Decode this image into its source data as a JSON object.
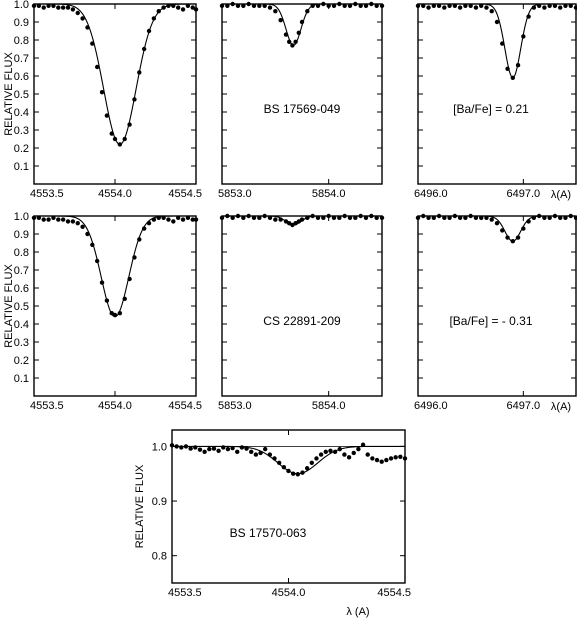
{
  "chart_data": [
    {
      "type": "scatter",
      "ylabel": "RELATIVE FLUX",
      "annotation": "BS 17569-049",
      "abundance": "[Ba/Fe] = 0.21",
      "xlabel": "λ(A)",
      "ylim": [
        0,
        1
      ],
      "yticks": [
        "0.1",
        "0.2",
        "0.3",
        "0.4",
        "0.5",
        "0.6",
        "0.7",
        "0.8",
        "0.9",
        "1.0"
      ],
      "panels": [
        {
          "xlim": [
            4553.5,
            4554.5
          ],
          "xticks": [
            "4553.5",
            "4554.0",
            "4554.5"
          ],
          "line_center": 4554.03,
          "line_depth": 0.78,
          "line_width": 0.1,
          "series": [
            {
              "x": [
                4553.5,
                4553.53,
                4553.56,
                4553.59,
                4553.62,
                4553.65,
                4553.68,
                4553.71,
                4553.74,
                4553.77,
                4553.8,
                4553.83,
                4553.86,
                4553.89,
                4553.92,
                4553.95,
                4553.98,
                4554.0,
                4554.03,
                4554.06,
                4554.09,
                4554.12,
                4554.15,
                4554.18,
                4554.21,
                4554.24,
                4554.27,
                4554.3,
                4554.33,
                4554.36,
                4554.39,
                4554.42,
                4554.45,
                4554.48,
                4554.5
              ],
              "y": [
                0.99,
                0.99,
                0.98,
                0.99,
                0.99,
                0.98,
                0.98,
                0.98,
                0.97,
                0.95,
                0.92,
                0.87,
                0.78,
                0.65,
                0.51,
                0.38,
                0.28,
                0.25,
                0.22,
                0.25,
                0.33,
                0.47,
                0.62,
                0.75,
                0.85,
                0.92,
                0.96,
                0.98,
                0.99,
                0.99,
                0.98,
                0.97,
                0.99,
                0.98,
                0.97
              ]
            }
          ]
        },
        {
          "xlim": [
            5853.0,
            5854.5
          ],
          "xticks": [
            "5853.0",
            "5854.0"
          ],
          "line_center": 5853.67,
          "line_depth": 0.23,
          "line_width": 0.07,
          "series": [
            {
              "x": [
                5853.0,
                5853.05,
                5853.1,
                5853.15,
                5853.2,
                5853.25,
                5853.3,
                5853.35,
                5853.4,
                5853.45,
                5853.5,
                5853.55,
                5853.6,
                5853.63,
                5853.66,
                5853.69,
                5853.72,
                5853.75,
                5853.8,
                5853.85,
                5853.9,
                5853.95,
                5854.0,
                5854.05,
                5854.1,
                5854.15,
                5854.2,
                5854.25,
                5854.3,
                5854.35,
                5854.4,
                5854.45,
                5854.5
              ],
              "y": [
                0.99,
                0.99,
                1.0,
                0.99,
                0.99,
                1.0,
                0.99,
                0.99,
                0.99,
                0.98,
                0.96,
                0.91,
                0.83,
                0.79,
                0.77,
                0.79,
                0.84,
                0.9,
                0.96,
                0.99,
                0.99,
                1.0,
                0.99,
                0.99,
                1.0,
                0.99,
                0.99,
                1.0,
                0.99,
                0.99,
                1.0,
                0.99,
                0.99
              ]
            }
          ]
        },
        {
          "xlim": [
            6496.0,
            6497.5
          ],
          "xticks": [
            "6496.0",
            "6497.0"
          ],
          "line_center": 6496.9,
          "line_depth": 0.41,
          "line_width": 0.075,
          "series": [
            {
              "x": [
                6496.0,
                6496.05,
                6496.1,
                6496.15,
                6496.2,
                6496.25,
                6496.3,
                6496.35,
                6496.4,
                6496.45,
                6496.5,
                6496.55,
                6496.6,
                6496.65,
                6496.7,
                6496.75,
                6496.8,
                6496.85,
                6496.9,
                6496.95,
                6497.0,
                6497.05,
                6497.1,
                6497.15,
                6497.2,
                6497.25,
                6497.3,
                6497.35,
                6497.4,
                6497.45,
                6497.5
              ],
              "y": [
                0.99,
                0.99,
                0.98,
                0.99,
                0.99,
                0.98,
                0.99,
                0.99,
                0.98,
                0.99,
                0.99,
                0.98,
                0.99,
                0.98,
                0.96,
                0.9,
                0.78,
                0.64,
                0.59,
                0.66,
                0.82,
                0.93,
                0.98,
                0.99,
                0.98,
                0.99,
                0.99,
                0.98,
                0.99,
                0.99,
                0.98
              ]
            }
          ]
        }
      ]
    },
    {
      "type": "scatter",
      "ylabel": "RELATIVE FLUX",
      "annotation": "CS 22891-209",
      "abundance": "[Ba/Fe] = - 0.31",
      "xlabel": "λ(A)",
      "ylim": [
        0,
        1
      ],
      "yticks": [
        "0.1",
        "0.2",
        "0.3",
        "0.4",
        "0.5",
        "0.6",
        "0.7",
        "0.8",
        "0.9",
        "1.0"
      ],
      "panels": [
        {
          "xlim": [
            4553.5,
            4554.5
          ],
          "xticks": [
            "4553.5",
            "4554.0",
            "4554.5"
          ],
          "line_center": 4554.0,
          "line_depth": 0.56,
          "line_width": 0.085,
          "series": [
            {
              "x": [
                4553.5,
                4553.53,
                4553.56,
                4553.59,
                4553.62,
                4553.65,
                4553.68,
                4553.71,
                4553.74,
                4553.77,
                4553.8,
                4553.83,
                4553.86,
                4553.89,
                4553.92,
                4553.95,
                4553.98,
                4554.0,
                4554.03,
                4554.06,
                4554.09,
                4554.12,
                4554.15,
                4554.18,
                4554.21,
                4554.24,
                4554.27,
                4554.3,
                4554.33,
                4554.36,
                4554.39,
                4554.42,
                4554.45,
                4554.48,
                4554.5
              ],
              "y": [
                0.99,
                0.99,
                0.98,
                0.98,
                0.99,
                0.98,
                0.98,
                0.97,
                0.97,
                0.96,
                0.94,
                0.9,
                0.84,
                0.75,
                0.63,
                0.53,
                0.46,
                0.45,
                0.46,
                0.54,
                0.65,
                0.77,
                0.87,
                0.93,
                0.96,
                0.98,
                0.99,
                0.99,
                0.98,
                0.97,
                0.99,
                0.98,
                0.99,
                0.98,
                0.98
              ]
            }
          ]
        },
        {
          "xlim": [
            5853.0,
            5854.5
          ],
          "xticks": [
            "5853.0",
            "5854.0"
          ],
          "line_center": 5853.67,
          "line_depth": 0.05,
          "line_width": 0.07,
          "series": [
            {
              "x": [
                5853.0,
                5853.05,
                5853.1,
                5853.15,
                5853.2,
                5853.25,
                5853.3,
                5853.35,
                5853.4,
                5853.45,
                5853.5,
                5853.55,
                5853.6,
                5853.63,
                5853.66,
                5853.69,
                5853.72,
                5853.75,
                5853.8,
                5853.85,
                5853.9,
                5853.95,
                5854.0,
                5854.05,
                5854.1,
                5854.15,
                5854.2,
                5854.25,
                5854.3,
                5854.35,
                5854.4,
                5854.45,
                5854.5
              ],
              "y": [
                0.99,
                1.0,
                0.99,
                1.0,
                0.99,
                1.0,
                0.99,
                0.99,
                1.0,
                0.99,
                0.98,
                0.98,
                0.97,
                0.96,
                0.95,
                0.96,
                0.97,
                0.98,
                0.99,
                1.0,
                0.99,
                0.99,
                1.0,
                0.99,
                0.99,
                1.0,
                0.99,
                0.99,
                1.0,
                0.99,
                1.0,
                0.99,
                0.99
              ]
            }
          ]
        },
        {
          "xlim": [
            6496.0,
            6497.5
          ],
          "xticks": [
            "6496.0",
            "6497.0"
          ],
          "line_center": 6496.9,
          "line_depth": 0.14,
          "line_width": 0.075,
          "series": [
            {
              "x": [
                6496.0,
                6496.05,
                6496.1,
                6496.15,
                6496.2,
                6496.25,
                6496.3,
                6496.35,
                6496.4,
                6496.45,
                6496.5,
                6496.55,
                6496.6,
                6496.65,
                6496.7,
                6496.75,
                6496.8,
                6496.85,
                6496.9,
                6496.95,
                6497.0,
                6497.05,
                6497.1,
                6497.15,
                6497.2,
                6497.25,
                6497.3,
                6497.35,
                6497.4,
                6497.45,
                6497.5
              ],
              "y": [
                0.99,
                1.0,
                0.99,
                0.99,
                1.0,
                0.99,
                0.99,
                1.0,
                0.99,
                0.99,
                1.0,
                0.99,
                0.99,
                0.99,
                0.98,
                0.96,
                0.92,
                0.88,
                0.86,
                0.88,
                0.93,
                0.97,
                0.99,
                1.0,
                0.99,
                0.99,
                1.0,
                0.99,
                0.99,
                1.0,
                0.99
              ]
            }
          ]
        }
      ]
    },
    {
      "type": "scatter",
      "ylabel": "RELATIVE FLUX",
      "annotation": "BS 17570-063",
      "xlabel": "λ (A)",
      "xlim": [
        4553.5,
        4554.5
      ],
      "xticks": [
        "4553.5",
        "4554.0",
        "4554.5"
      ],
      "ylim": [
        0.75,
        1.03
      ],
      "yticks": [
        "0.8",
        "0.9",
        "1.0"
      ],
      "line_center": 4554.04,
      "line_depth": 0.05,
      "line_width": 0.085,
      "series": [
        {
          "x": [
            4553.5,
            4553.52,
            4553.54,
            4553.56,
            4553.58,
            4553.6,
            4553.62,
            4553.64,
            4553.66,
            4553.68,
            4553.7,
            4553.72,
            4553.74,
            4553.76,
            4553.78,
            4553.8,
            4553.82,
            4553.84,
            4553.86,
            4553.88,
            4553.9,
            4553.92,
            4553.94,
            4553.96,
            4553.98,
            4554.0,
            4554.02,
            4554.04,
            4554.06,
            4554.08,
            4554.1,
            4554.12,
            4554.14,
            4554.16,
            4554.18,
            4554.2,
            4554.22,
            4554.24,
            4554.26,
            4554.28,
            4554.3,
            4554.32,
            4554.34,
            4554.36,
            4554.38,
            4554.4,
            4554.42,
            4554.44,
            4554.46,
            4554.48,
            4554.5
          ],
          "y": [
            1.002,
            1.0,
            0.998,
            1.0,
            0.996,
            0.998,
            0.994,
            0.99,
            0.995,
            0.996,
            0.992,
            0.998,
            0.995,
            0.997,
            0.99,
            0.998,
            0.996,
            0.99,
            0.985,
            0.988,
            0.995,
            0.985,
            0.978,
            0.97,
            0.962,
            0.955,
            0.95,
            0.949,
            0.952,
            0.96,
            0.97,
            0.978,
            0.985,
            0.99,
            0.992,
            0.99,
            0.995,
            0.985,
            0.98,
            0.988,
            0.995,
            1.003,
            0.985,
            0.978,
            0.975,
            0.972,
            0.975,
            0.978,
            0.98,
            0.981,
            0.978
          ]
        }
      ]
    }
  ]
}
